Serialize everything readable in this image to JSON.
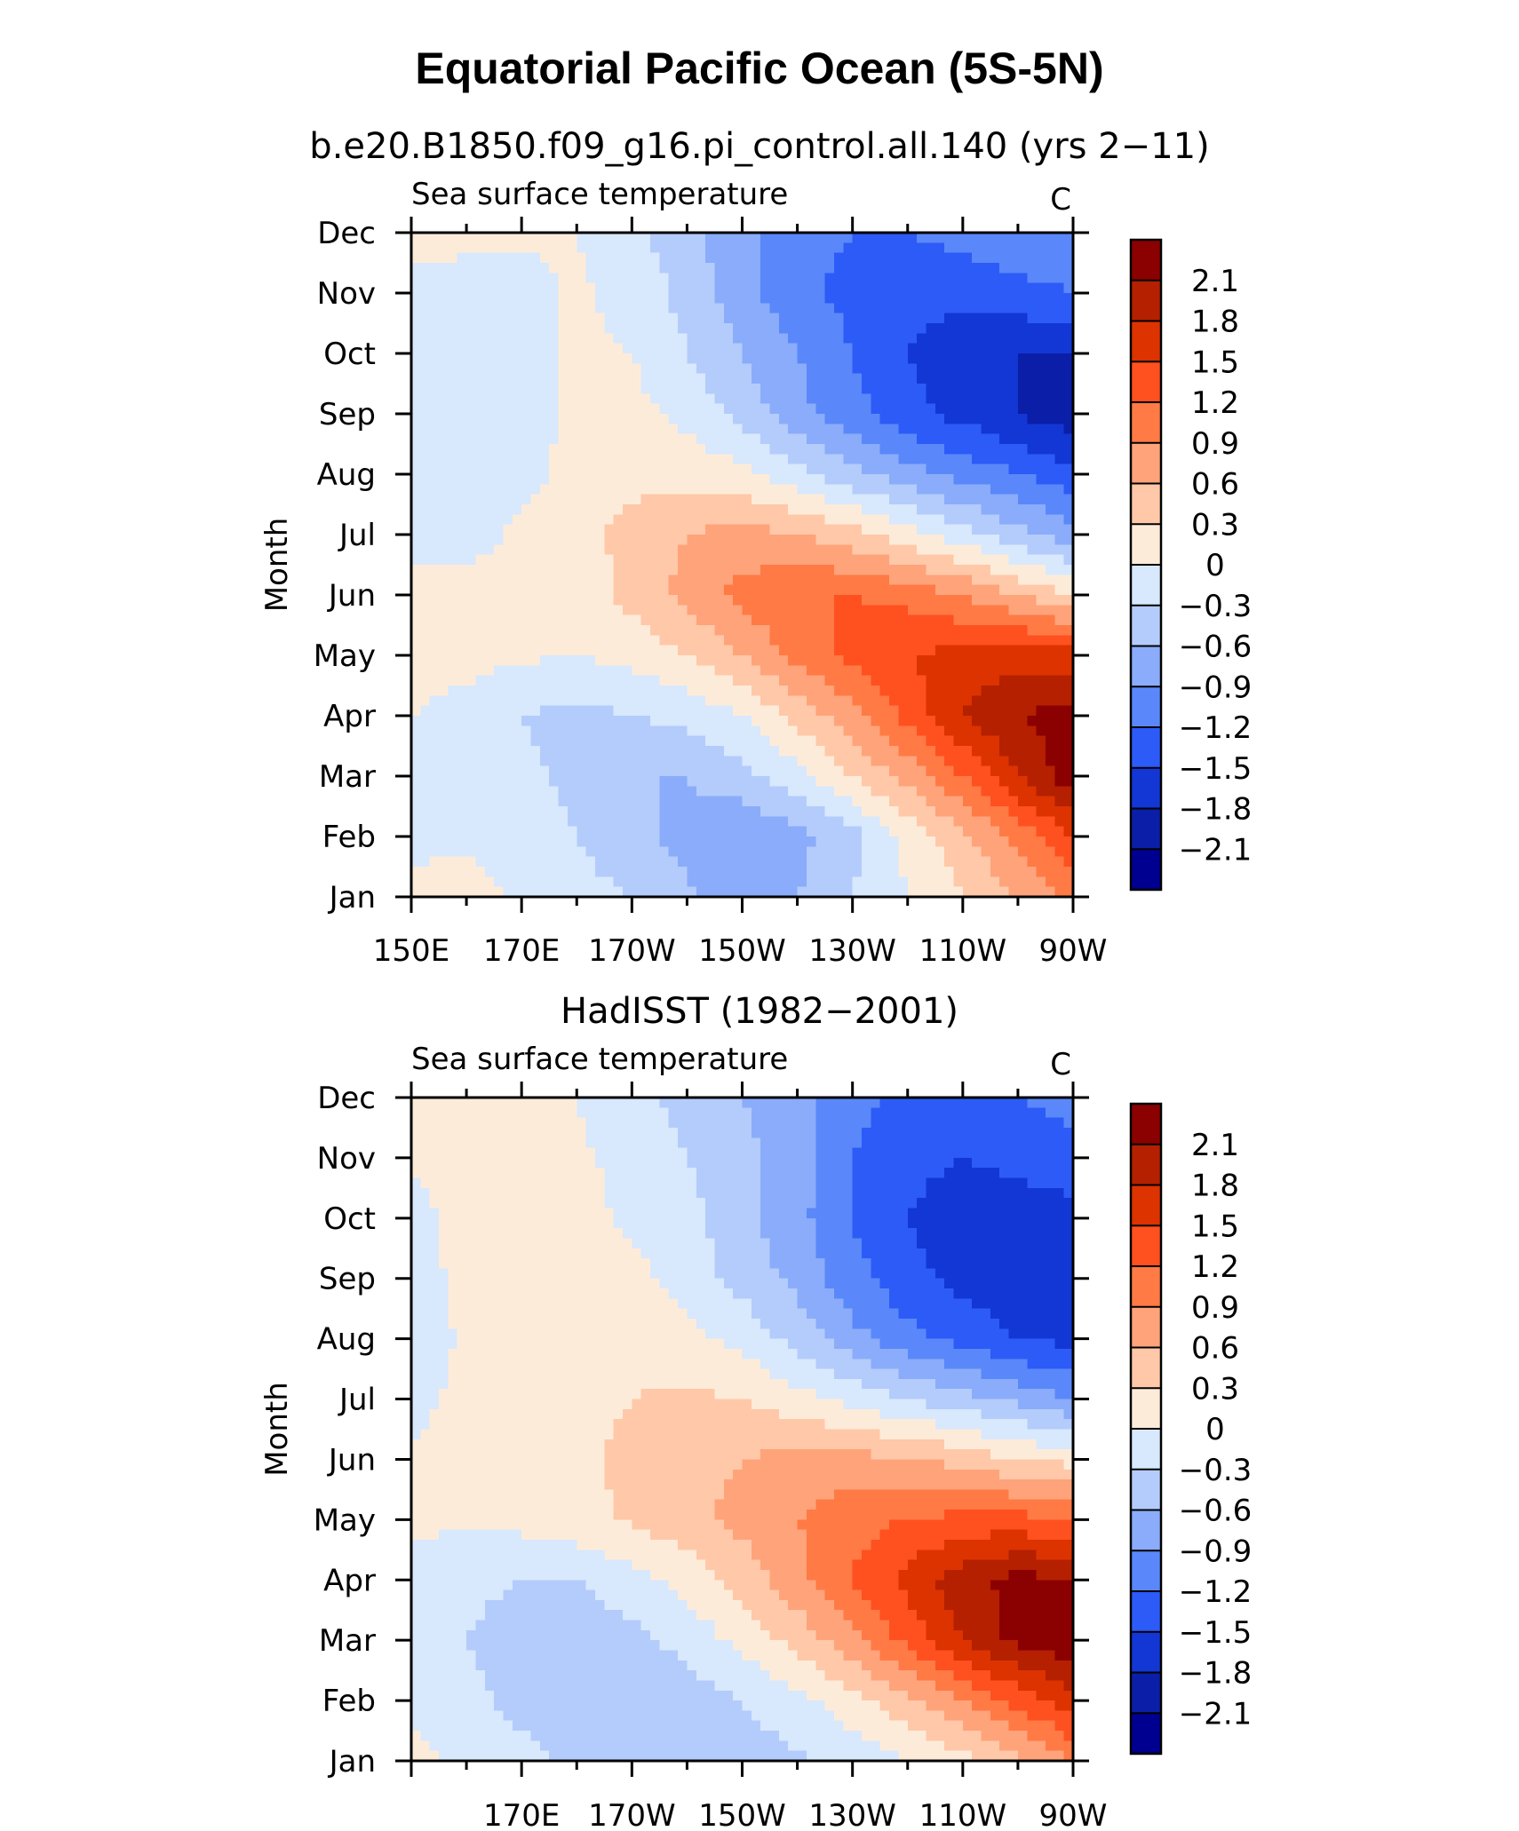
{
  "title": "Equatorial Pacific Ocean (5S-5N)",
  "chart_data": [
    {
      "type": "heatmap",
      "title": "b.e20.B1850.f09_g16.pi_control.all.140 (yrs 2−11)",
      "left_label": "Sea surface temperature",
      "right_label": "C",
      "ylabel": "Month",
      "x_tick_labels": [
        "150E",
        "170E",
        "170W",
        "150W",
        "130W",
        "110W",
        "90W"
      ],
      "y_tick_labels": [
        "Jan",
        "Feb",
        "Mar",
        "Apr",
        "May",
        "Jun",
        "Jul",
        "Aug",
        "Sep",
        "Oct",
        "Nov",
        "Dec"
      ],
      "x": [
        150,
        160,
        170,
        180,
        190,
        200,
        210,
        220,
        230,
        240,
        250,
        260,
        270
      ],
      "rows": [
        [
          0.1,
          0.2,
          -0.1,
          -0.2,
          -0.3,
          -0.55,
          -0.7,
          -0.6,
          -0.3,
          0.0,
          0.3,
          0.6,
          1.0
        ],
        [
          -0.1,
          -0.1,
          -0.2,
          -0.3,
          -0.5,
          -0.7,
          -0.9,
          -0.7,
          -0.4,
          0.1,
          0.5,
          1.0,
          1.5
        ],
        [
          -0.2,
          -0.2,
          -0.25,
          -0.35,
          -0.6,
          -0.6,
          -0.4,
          -0.1,
          0.3,
          0.7,
          1.2,
          1.8,
          2.3
        ],
        [
          0.0,
          -0.1,
          -0.3,
          -0.4,
          -0.3,
          -0.2,
          0.0,
          0.4,
          0.8,
          1.3,
          1.8,
          2.1,
          2.2
        ],
        [
          0.1,
          0.1,
          0.05,
          0.0,
          0.1,
          0.3,
          0.6,
          1.0,
          1.3,
          1.5,
          1.6,
          1.7,
          1.6
        ],
        [
          0.1,
          0.1,
          0.05,
          0.1,
          0.4,
          0.7,
          1.0,
          1.2,
          1.2,
          1.1,
          0.9,
          0.6,
          0.3
        ],
        [
          -0.1,
          -0.1,
          0.05,
          0.2,
          0.4,
          0.6,
          0.7,
          0.6,
          0.4,
          0.1,
          -0.2,
          -0.5,
          -0.8
        ],
        [
          -0.2,
          -0.2,
          -0.1,
          0.1,
          0.2,
          0.2,
          0.1,
          -0.2,
          -0.5,
          -0.8,
          -1.0,
          -1.2,
          -1.4
        ],
        [
          -0.3,
          -0.2,
          -0.1,
          0.05,
          0.1,
          -0.1,
          -0.4,
          -0.8,
          -1.1,
          -1.4,
          -1.6,
          -1.8,
          -2.0
        ],
        [
          -0.2,
          -0.2,
          -0.15,
          0.05,
          0.0,
          -0.3,
          -0.6,
          -0.9,
          -1.2,
          -1.5,
          -1.7,
          -1.8,
          -1.8
        ],
        [
          -0.1,
          -0.15,
          -0.1,
          0.05,
          -0.1,
          -0.4,
          -0.8,
          -1.1,
          -1.3,
          -1.4,
          -1.4,
          -1.3,
          -1.2
        ],
        [
          0.1,
          0.1,
          0.05,
          0.0,
          -0.2,
          -0.5,
          -0.8,
          -1.1,
          -1.2,
          -1.2,
          -1.1,
          -1.0,
          -0.9
        ]
      ]
    },
    {
      "type": "heatmap",
      "title": "HadISST (1982−2001)",
      "left_label": "Sea surface temperature",
      "right_label": "C",
      "ylabel": "Month",
      "x_tick_labels": [
        "170E",
        "170W",
        "150W",
        "130W",
        "110W",
        "90W"
      ],
      "y_tick_labels": [
        "Jan",
        "Feb",
        "Mar",
        "Apr",
        "May",
        "Jun",
        "Jul",
        "Aug",
        "Sep",
        "Oct",
        "Nov",
        "Dec"
      ],
      "x": [
        150,
        160,
        170,
        180,
        190,
        200,
        210,
        220,
        230,
        240,
        250,
        260,
        270
      ],
      "rows": [
        [
          0.1,
          -0.1,
          -0.2,
          -0.35,
          -0.45,
          -0.5,
          -0.45,
          -0.35,
          -0.2,
          0.0,
          0.2,
          0.5,
          0.9
        ],
        [
          -0.1,
          -0.2,
          -0.4,
          -0.5,
          -0.5,
          -0.45,
          -0.3,
          -0.1,
          0.2,
          0.5,
          0.9,
          1.3,
          1.7
        ],
        [
          -0.2,
          -0.3,
          -0.5,
          -0.5,
          -0.4,
          -0.2,
          0.1,
          0.4,
          0.8,
          1.3,
          1.8,
          2.2,
          2.3
        ],
        [
          -0.1,
          -0.2,
          -0.3,
          -0.3,
          -0.1,
          0.1,
          0.4,
          0.8,
          1.2,
          1.6,
          2.0,
          2.2,
          2.1
        ],
        [
          0.05,
          0.05,
          0.1,
          0.2,
          0.35,
          0.5,
          0.7,
          0.9,
          1.1,
          1.2,
          1.3,
          1.3,
          1.2
        ],
        [
          0.05,
          0.1,
          0.1,
          0.2,
          0.4,
          0.5,
          0.6,
          0.7,
          0.7,
          0.6,
          0.5,
          0.3,
          0.2
        ],
        [
          -0.1,
          0.1,
          0.15,
          0.2,
          0.3,
          0.35,
          0.3,
          0.1,
          -0.1,
          -0.3,
          -0.5,
          -0.7,
          -0.9
        ],
        [
          -0.2,
          0.05,
          0.2,
          0.25,
          0.2,
          0.1,
          -0.1,
          -0.4,
          -0.8,
          -1.1,
          -1.3,
          -1.5,
          -1.6
        ],
        [
          -0.15,
          0.1,
          0.3,
          0.2,
          0.1,
          -0.15,
          -0.4,
          -0.7,
          -1.1,
          -1.4,
          -1.6,
          -1.7,
          -1.6
        ],
        [
          -0.1,
          0.1,
          0.15,
          0.1,
          -0.05,
          -0.2,
          -0.5,
          -0.8,
          -1.2,
          -1.5,
          -1.7,
          -1.7,
          -1.6
        ],
        [
          0.05,
          0.1,
          0.1,
          0.05,
          -0.1,
          -0.3,
          -0.5,
          -0.8,
          -1.2,
          -1.4,
          -1.5,
          -1.4,
          -1.3
        ],
        [
          0.1,
          0.1,
          0.05,
          0.0,
          -0.2,
          -0.4,
          -0.6,
          -0.8,
          -1.1,
          -1.3,
          -1.3,
          -1.2,
          -1.1
        ]
      ]
    }
  ],
  "colorbar": {
    "levels": [
      "2.1",
      "1.8",
      "1.5",
      "1.2",
      "0.9",
      "0.6",
      "0.3",
      "0",
      "−0.3",
      "−0.6",
      "−0.9",
      "−1.2",
      "−1.5",
      "−1.8",
      "−2.1"
    ],
    "colors": [
      "#8b0000",
      "#b42000",
      "#dc3300",
      "#ff5020",
      "#ff7a45",
      "#ffa37a",
      "#ffc8a8",
      "#fdebd9",
      "#d8e8fd",
      "#b4ccfb",
      "#8aacfa",
      "#5a88fa",
      "#2d5bf7",
      "#1337d4",
      "#0a1ea7",
      "#000090"
    ]
  }
}
